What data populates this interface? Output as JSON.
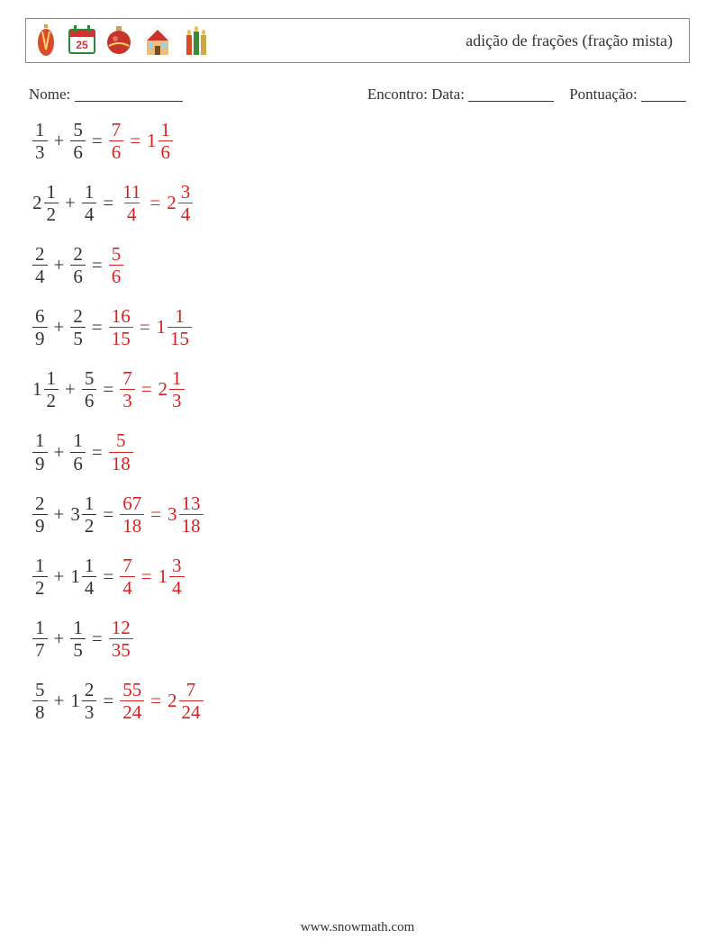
{
  "header": {
    "title": "adição de frações (fração mista)"
  },
  "info": {
    "name_label": "Nome:",
    "encounter_label": "Encontro: Data:",
    "score_label": "Pontuação:"
  },
  "colors": {
    "text": "#333333",
    "answer": "#d92020",
    "border": "#888888"
  },
  "problems": [
    {
      "a": {
        "whole": null,
        "num": "1",
        "den": "3"
      },
      "b": {
        "whole": null,
        "num": "5",
        "den": "6"
      },
      "ans_improper": {
        "num": "7",
        "den": "6"
      },
      "ans_mixed": {
        "whole": "1",
        "num": "1",
        "den": "6"
      }
    },
    {
      "a": {
        "whole": "2",
        "num": "1",
        "den": "2"
      },
      "b": {
        "whole": null,
        "num": "1",
        "den": "4"
      },
      "ans_improper": {
        "num": "11",
        "den": "4"
      },
      "ans_mixed": {
        "whole": "2",
        "num": "3",
        "den": "4"
      }
    },
    {
      "a": {
        "whole": null,
        "num": "2",
        "den": "4"
      },
      "b": {
        "whole": null,
        "num": "2",
        "den": "6"
      },
      "ans_improper": {
        "num": "5",
        "den": "6"
      },
      "ans_mixed": null
    },
    {
      "a": {
        "whole": null,
        "num": "6",
        "den": "9"
      },
      "b": {
        "whole": null,
        "num": "2",
        "den": "5"
      },
      "ans_improper": {
        "num": "16",
        "den": "15"
      },
      "ans_mixed": {
        "whole": "1",
        "num": "1",
        "den": "15"
      }
    },
    {
      "a": {
        "whole": "1",
        "num": "1",
        "den": "2"
      },
      "b": {
        "whole": null,
        "num": "5",
        "den": "6"
      },
      "ans_improper": {
        "num": "7",
        "den": "3"
      },
      "ans_mixed": {
        "whole": "2",
        "num": "1",
        "den": "3"
      }
    },
    {
      "a": {
        "whole": null,
        "num": "1",
        "den": "9"
      },
      "b": {
        "whole": null,
        "num": "1",
        "den": "6"
      },
      "ans_improper": {
        "num": "5",
        "den": "18"
      },
      "ans_mixed": null
    },
    {
      "a": {
        "whole": null,
        "num": "2",
        "den": "9"
      },
      "b": {
        "whole": "3",
        "num": "1",
        "den": "2"
      },
      "ans_improper": {
        "num": "67",
        "den": "18"
      },
      "ans_mixed": {
        "whole": "3",
        "num": "13",
        "den": "18"
      }
    },
    {
      "a": {
        "whole": null,
        "num": "1",
        "den": "2"
      },
      "b": {
        "whole": "1",
        "num": "1",
        "den": "4"
      },
      "ans_improper": {
        "num": "7",
        "den": "4"
      },
      "ans_mixed": {
        "whole": "1",
        "num": "3",
        "den": "4"
      }
    },
    {
      "a": {
        "whole": null,
        "num": "1",
        "den": "7"
      },
      "b": {
        "whole": null,
        "num": "1",
        "den": "5"
      },
      "ans_improper": {
        "num": "12",
        "den": "35"
      },
      "ans_mixed": null
    },
    {
      "a": {
        "whole": null,
        "num": "5",
        "den": "8"
      },
      "b": {
        "whole": "1",
        "num": "2",
        "den": "3"
      },
      "ans_improper": {
        "num": "55",
        "den": "24"
      },
      "ans_mixed": {
        "whole": "2",
        "num": "7",
        "den": "24"
      }
    }
  ],
  "footer": {
    "text": "www.snowmath.com"
  }
}
